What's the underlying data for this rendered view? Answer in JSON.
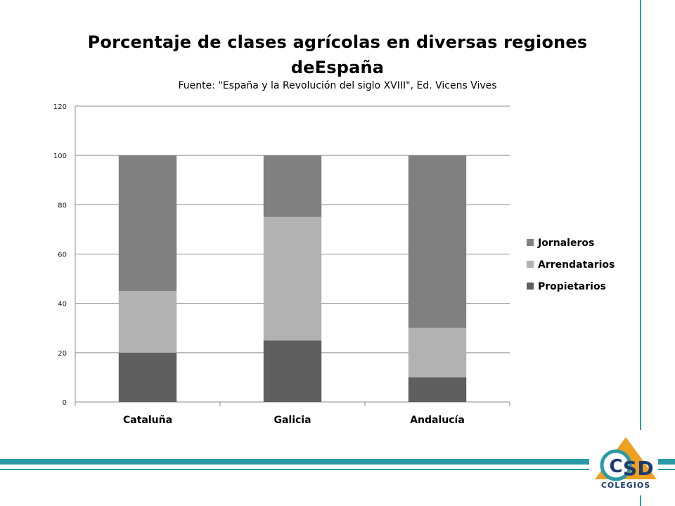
{
  "chart_data": {
    "type": "bar",
    "stacked": true,
    "title": "Porcentaje de clases agrícolas en diversas regiones deEspaña",
    "subtitle": "Fuente: \"España y la Revolución del siglo XVIII\", Ed. Vicens Vives",
    "categories": [
      "Cataluña",
      "Galicia",
      "Andalucía"
    ],
    "series": [
      {
        "name": "Propietarios",
        "values": [
          20,
          25,
          10
        ],
        "color": "#5f5f5f"
      },
      {
        "name": "Arrendatarios",
        "values": [
          25,
          50,
          20
        ],
        "color": "#b2b2b2"
      },
      {
        "name": "Jornaleros",
        "values": [
          55,
          25,
          70
        ],
        "color": "#808080"
      }
    ],
    "legend_order": [
      "Jornaleros",
      "Arrendatarios",
      "Propietarios"
    ],
    "yticks": [
      "0",
      "20",
      "40",
      "60",
      "80",
      "100",
      "120"
    ],
    "ylim": [
      0,
      120
    ],
    "grid": true,
    "legend": "right"
  },
  "logo": {
    "text": "COLEGIOS",
    "colors": {
      "teal": "#2a9aa8",
      "navy": "#1d3b6e",
      "orange": "#f0a020"
    }
  }
}
